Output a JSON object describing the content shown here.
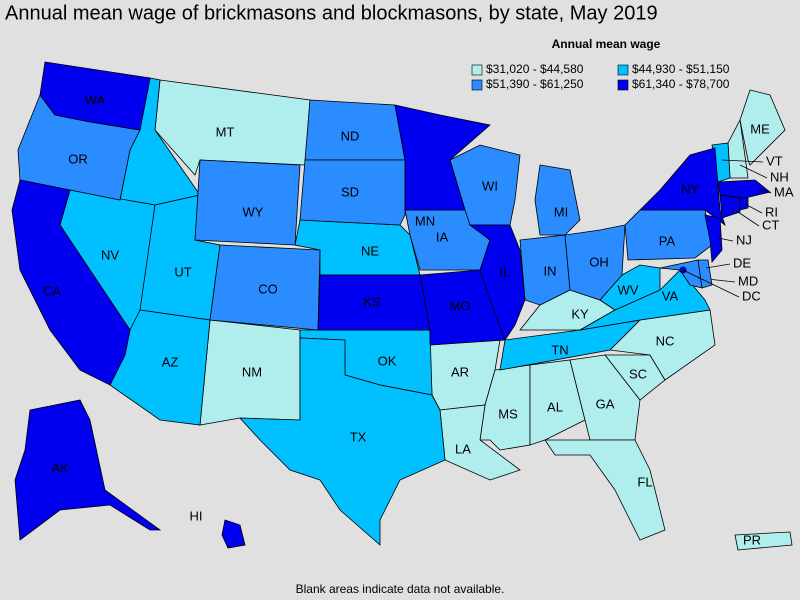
{
  "title": "Annual mean wage of brickmasons and blockmasons, by state, May 2019",
  "legend": {
    "title": "Annual mean wage",
    "items": [
      {
        "label": "$31,020 - $44,580",
        "color": "#b0eeee",
        "states": [
          "MT",
          "NM",
          "AR",
          "MS",
          "AL",
          "GA",
          "SC",
          "NC",
          "KY",
          "FL",
          "LA",
          "ME",
          "NH",
          "PR"
        ]
      },
      {
        "label": "$44,930 - $51,150",
        "color": "#00c0ff",
        "states": [
          "ID",
          "NV",
          "UT",
          "AZ",
          "NE",
          "OK",
          "TX",
          "TN",
          "VA",
          "WV",
          "VT"
        ]
      },
      {
        "label": "$51,390 - $61,250",
        "color": "#2a8cff",
        "states": [
          "OR",
          "WY",
          "CO",
          "ND",
          "SD",
          "IA",
          "WI",
          "MI",
          "IN",
          "OH",
          "PA",
          "MD",
          "DE"
        ]
      },
      {
        "label": "$61,340 - $78,700",
        "color": "#0000ee",
        "states": [
          "WA",
          "CA",
          "MN",
          "KS",
          "MO",
          "IL",
          "NY",
          "NJ",
          "MA",
          "CT",
          "RI",
          "AK",
          "HI",
          "DC"
        ]
      }
    ]
  },
  "footnote": "Blank areas indicate data not available."
}
